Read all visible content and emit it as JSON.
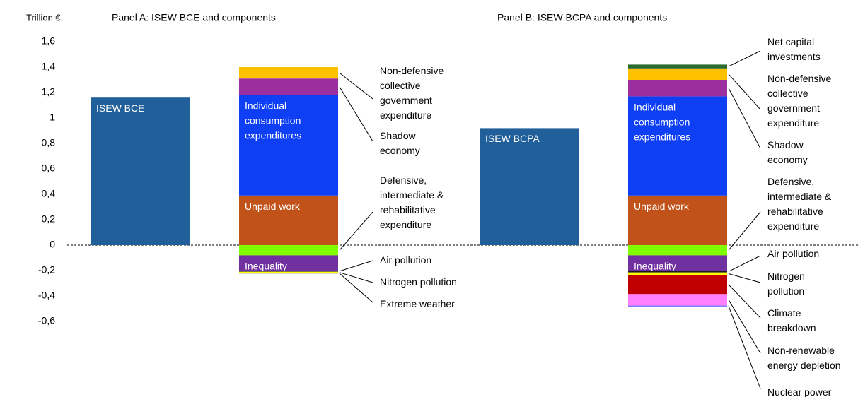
{
  "chart_data": [
    {
      "type": "stacked-bar",
      "title": "Panel A: ISEW BCE and components",
      "y_label": "Trillion €",
      "ylim": [
        -0.6,
        1.6
      ],
      "yticks": [
        {
          "value": 1.6,
          "label": "1,6"
        },
        {
          "value": 1.4,
          "label": "1,4"
        },
        {
          "value": 1.2,
          "label": "1,2"
        },
        1,
        {
          "value": 0.8,
          "label": "0,8"
        },
        {
          "value": 0.6,
          "label": "0,6"
        },
        {
          "value": 0.4,
          "label": "0,4"
        },
        {
          "value": 0.2,
          "label": "0,2"
        },
        0,
        {
          "value": -0.2,
          "label": "-0,2"
        },
        {
          "value": -0.4,
          "label": "-0,4"
        },
        {
          "value": -0.6,
          "label": "-0,6"
        }
      ],
      "total": {
        "name": "ISEW BCE",
        "color": "#215f9a",
        "value": 1.16
      },
      "series": [
        {
          "name": "Unpaid work",
          "color": "#c0521a",
          "value": 0.39
        },
        {
          "name": "Individual consumption expenditures",
          "color": "#0f3ff5",
          "value": 0.79
        },
        {
          "name": "Shadow economy",
          "color": "#9b2fa0",
          "value": 0.13
        },
        {
          "name": "Non-defensive collective government expenditure",
          "color": "#ffc000",
          "value": 0.09
        },
        {
          "name": "Defensive, intermediate & rehabilitative expenditure",
          "color": "#80ff00",
          "value": -0.08
        },
        {
          "name": "Inequality",
          "color": "#7030a0",
          "value": -0.12
        },
        {
          "name": "Air pollution",
          "color": "#3a3a3a",
          "value": -0.01
        },
        {
          "name": "Nitrogen pollution",
          "color": "#ffff00",
          "value": -0.01
        },
        {
          "name": "Extreme weather",
          "color": "#b0b0b0",
          "value": -0.005
        }
      ]
    },
    {
      "type": "stacked-bar",
      "title": "Panel B: ISEW BCPA and components",
      "ylim": [
        -0.6,
        1.6
      ],
      "total": {
        "name": "ISEW BCPA",
        "color": "#215f9a",
        "value": 0.92
      },
      "series": [
        {
          "name": "Unpaid work",
          "color": "#c0521a",
          "value": 0.39
        },
        {
          "name": "Individual consumption expenditures",
          "color": "#0f3ff5",
          "value": 0.78
        },
        {
          "name": "Shadow economy",
          "color": "#9b2fa0",
          "value": 0.13
        },
        {
          "name": "Non-defensive collective government expenditure",
          "color": "#ffc000",
          "value": 0.09
        },
        {
          "name": "Net capital investments",
          "color": "#2e6b30",
          "value": 0.03
        },
        {
          "name": "Defensive, intermediate & rehabilitative expenditure",
          "color": "#80ff00",
          "value": -0.08
        },
        {
          "name": "Inequality",
          "color": "#7030a0",
          "value": -0.12
        },
        {
          "name": "Air pollution",
          "color": "#1a1a1a",
          "value": -0.015
        },
        {
          "name": "Nitrogen pollution",
          "color": "#ffff00",
          "value": -0.02
        },
        {
          "name": "Climate breakdown",
          "color": "#c00000",
          "value": -0.15
        },
        {
          "name": "Non-renewable energy depletion",
          "color": "#ff80ff",
          "value": -0.09
        },
        {
          "name": "Nuclear power",
          "color": "#8080ff",
          "value": -0.01
        }
      ]
    }
  ]
}
